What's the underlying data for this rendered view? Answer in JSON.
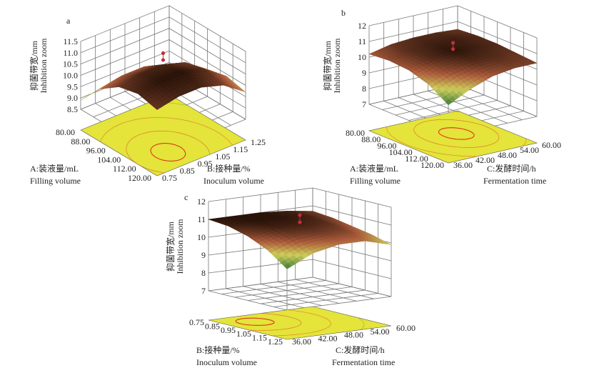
{
  "chart_data": [
    {
      "type": "surface",
      "panel_label": "a",
      "x": {
        "title_cn": "A:装液量/mL",
        "title_en": "Filling volume",
        "range": [
          80,
          120
        ],
        "ticks": [
          "80.00",
          "88.00",
          "96.00",
          "104.00",
          "112.00",
          "120.00"
        ]
      },
      "y": {
        "title_cn": "B:接种量/%",
        "title_en": "Inoculum volume",
        "range": [
          0.75,
          1.25
        ],
        "ticks": [
          "0.75",
          "0.85",
          "0.95",
          "1.05",
          "1.15",
          "1.25"
        ]
      },
      "z": {
        "title_cn": "抑菌带宽/mm",
        "title_en": "Inhibition zoom",
        "range": [
          8.5,
          11.5
        ],
        "ticks": [
          "8.5",
          "9.0",
          "9.5",
          "10.0",
          "10.5",
          "11.0",
          "11.5"
        ]
      },
      "x_grid": [
        80,
        90,
        100,
        110,
        120
      ],
      "y_grid": [
        0.75,
        0.875,
        1.0,
        1.125,
        1.25
      ],
      "z_values": [
        [
          8.9,
          9.1,
          9.1,
          8.8,
          8.5
        ],
        [
          9.9,
          10.1,
          10.1,
          9.8,
          9.1
        ],
        [
          10.5,
          10.7,
          10.7,
          10.4,
          9.7
        ],
        [
          10.7,
          10.9,
          10.9,
          10.6,
          9.9
        ],
        [
          10.5,
          10.7,
          10.7,
          10.4,
          9.7
        ]
      ],
      "design_points": [
        {
          "x": 100,
          "y": 1.0,
          "z": 11.2
        },
        {
          "x": 100,
          "y": 1.0,
          "z": 10.9
        }
      ],
      "contour_center": [
        110,
        0.92
      ]
    },
    {
      "type": "surface",
      "panel_label": "b",
      "x": {
        "title_cn": "A:装液量/mL",
        "title_en": "Filling volume",
        "range": [
          80,
          120
        ],
        "ticks": [
          "80.00",
          "88.00",
          "96.00",
          "104.00",
          "112.00",
          "120.00"
        ]
      },
      "y": {
        "title_cn": "C:发酵时间/h",
        "title_en": "Fermentation time",
        "range": [
          36,
          60
        ],
        "ticks": [
          "36.00",
          "42.00",
          "48.00",
          "54.00",
          "60.00"
        ]
      },
      "z": {
        "title_cn": "抑菌带宽/mm",
        "title_en": "Inhibition zoom",
        "range": [
          7,
          12
        ],
        "ticks": [
          "7",
          "8",
          "9",
          "10",
          "11",
          "12"
        ]
      },
      "x_grid": [
        80,
        90,
        100,
        110,
        120
      ],
      "y_grid": [
        36,
        42,
        48,
        54,
        60
      ],
      "z_values": [
        [
          10.2,
          10.5,
          10.6,
          10.6,
          10.5
        ],
        [
          10.3,
          10.6,
          10.7,
          10.7,
          10.6
        ],
        [
          10.2,
          10.6,
          10.8,
          10.7,
          10.6
        ],
        [
          9.8,
          10.3,
          10.6,
          10.6,
          10.5
        ],
        [
          9.0,
          9.7,
          10.2,
          10.4,
          10.4
        ]
      ],
      "design_points": [
        {
          "x": 100,
          "y": 48,
          "z": 11.3
        },
        {
          "x": 100,
          "y": 48,
          "z": 10.9
        }
      ],
      "contour_center": [
        98,
        50
      ]
    },
    {
      "type": "surface",
      "panel_label": "c",
      "x": {
        "title_cn": "B:接种量/%",
        "title_en": "Inoculum volume",
        "range": [
          0.75,
          1.25
        ],
        "ticks": [
          "0.75",
          "0.85",
          "0.95",
          "1.05",
          "1.15",
          "1.25"
        ]
      },
      "y": {
        "title_cn": "C:发酵时间/h",
        "title_en": "Fermentation time",
        "range": [
          36,
          60
        ],
        "ticks": [
          "36.00",
          "42.00",
          "48.00",
          "54.00",
          "60.00"
        ]
      },
      "z": {
        "title_cn": "抑菌带宽/mm",
        "title_en": "Inhibition zoom",
        "range": [
          7,
          12
        ],
        "ticks": [
          "7",
          "8",
          "9",
          "10",
          "11",
          "12"
        ]
      },
      "x_grid": [
        0.75,
        0.875,
        1.0,
        1.125,
        1.25
      ],
      "y_grid": [
        36,
        42,
        48,
        54,
        60
      ],
      "z_values": [
        [
          11.0,
          11.0,
          11.0,
          10.9,
          10.7
        ],
        [
          10.9,
          11.0,
          11.0,
          10.9,
          10.6
        ],
        [
          10.6,
          10.9,
          10.9,
          10.8,
          10.4
        ],
        [
          10.1,
          10.6,
          10.7,
          10.6,
          10.2
        ],
        [
          9.3,
          10.0,
          10.3,
          10.3,
          9.9
        ]
      ],
      "design_points": [
        {
          "x": 1.0,
          "y": 48,
          "z": 11.4
        },
        {
          "x": 1.0,
          "y": 48,
          "z": 11.0
        }
      ],
      "contour_center": [
        0.88,
        42
      ]
    }
  ],
  "colors": {
    "floor": "#e4e43a",
    "contour": "#e07a2a",
    "contour_inner": "#d83a1a",
    "design_point": "#c0303a",
    "grid": "#777777"
  }
}
